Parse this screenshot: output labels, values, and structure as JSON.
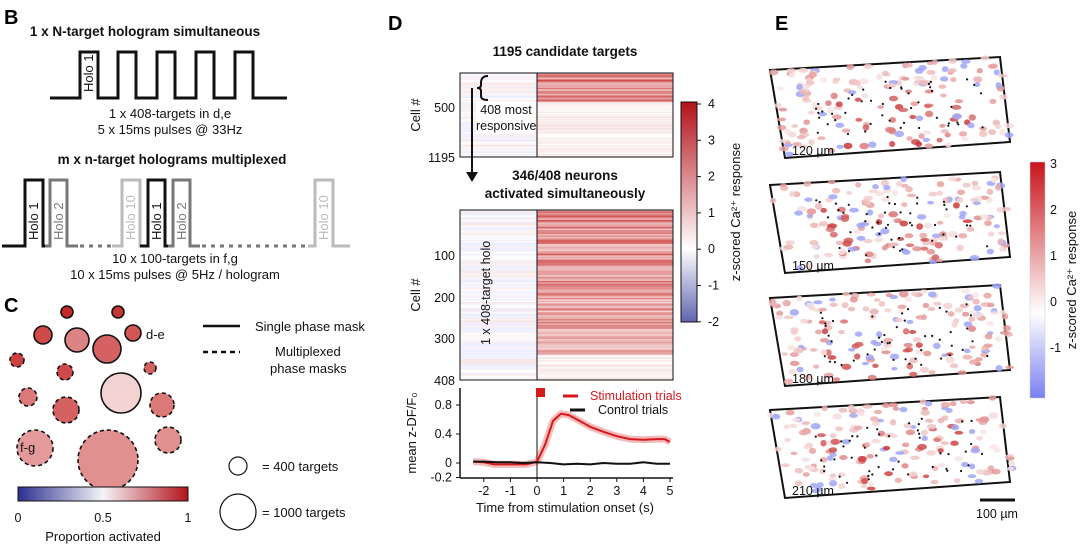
{
  "panels": {
    "B": {
      "label": "B",
      "title1": "1 x N-target hologram simultaneous",
      "holo_single": "Holo 1",
      "caption1a": "1 x 408-targets in d,e",
      "caption1b": "5 x 15ms pulses @ 33Hz",
      "title2": "m x n-target holograms multiplexed",
      "holo_labels": [
        "Holo 1",
        "Holo 2",
        "Holo 10",
        "Holo 1",
        "Holo 2",
        "Holo 10"
      ],
      "caption2a": "10 x 100-targets in f,g",
      "caption2b": "10 x 15ms pulses @ 5Hz / hologram"
    },
    "C": {
      "label": "C",
      "label_de": "d-e",
      "label_fg": "f-g",
      "legend_solid": "Single phase mask",
      "legend_dashed_1": "Multiplexed",
      "legend_dashed_2": "phase masks",
      "size_400": "=  400 targets",
      "size_1000": "= 1000 targets",
      "colorbar_ticks": [
        "0",
        "0.5",
        "1"
      ],
      "colorbar_label": "Proportion activated"
    },
    "D": {
      "label": "D",
      "title_top": "1195 candidate targets",
      "ylabel": "Cell #",
      "top_ticks": [
        "500",
        "1195"
      ],
      "annotation_top": "408 most responsive",
      "title_mid_1": "346/408 neurons",
      "title_mid_2": "activated simultaneously",
      "mid_ticks": [
        "100",
        "200",
        "300",
        "408"
      ],
      "annotation_mid": "1 x 408-target holo",
      "colorbar_ticks": [
        "4",
        "3",
        "2",
        "1",
        "0",
        "-1",
        "-2"
      ],
      "colorbar_label": "z-scored Ca²⁺ response"
    },
    "E": {
      "label": "E",
      "depths": [
        "120 µm",
        "150 µm",
        "180 µm",
        "210 µm"
      ],
      "scalebar": "100 µm",
      "colorbar_ticks": [
        "3",
        "2",
        "1",
        "0",
        "-1"
      ],
      "colorbar_label": "z-scored Ca²⁺ response"
    }
  },
  "chart_data": {
    "type": "line",
    "xlabel": "Time from stimulation onset (s)",
    "ylabel": "mean z-DF/F₀",
    "xlim": [
      -2.5,
      5
    ],
    "ylim": [
      -0.2,
      0.9
    ],
    "xticks": [
      "-2",
      "-1",
      "0",
      "1",
      "2",
      "3",
      "4",
      "5"
    ],
    "yticks": [
      "0.8",
      "0.4",
      "0",
      "-0.2"
    ],
    "legend": "top-right",
    "series": [
      {
        "name": "Stimulation trials",
        "color": "#d7191c",
        "x": [
          -2.4,
          -2,
          -1.6,
          -1.2,
          -0.8,
          -0.4,
          0,
          0.3,
          0.6,
          0.9,
          1.2,
          1.6,
          2,
          2.5,
          3,
          3.5,
          4,
          4.5,
          4.8,
          5
        ],
        "y": [
          0.02,
          0.01,
          -0.02,
          -0.02,
          -0.02,
          -0.02,
          0.02,
          0.25,
          0.58,
          0.68,
          0.66,
          0.58,
          0.5,
          0.43,
          0.37,
          0.33,
          0.32,
          0.33,
          0.33,
          0.29
        ]
      },
      {
        "name": "Control trials",
        "color": "#111111",
        "x": [
          -2.4,
          -2,
          -1.5,
          -1,
          -0.5,
          0,
          0.5,
          1,
          1.5,
          2,
          2.5,
          3,
          3.5,
          4,
          4.5,
          5
        ],
        "y": [
          0.02,
          0.02,
          0.01,
          0.01,
          0.0,
          0.01,
          0.0,
          -0.02,
          -0.01,
          -0.02,
          0.0,
          -0.01,
          -0.01,
          0.01,
          -0.01,
          -0.01
        ]
      }
    ]
  }
}
